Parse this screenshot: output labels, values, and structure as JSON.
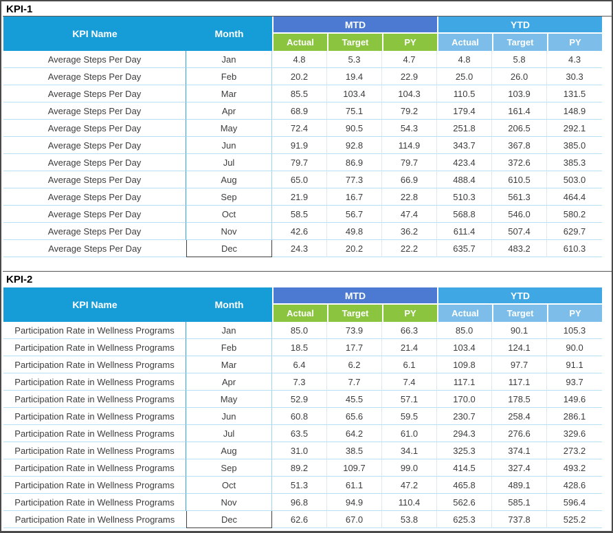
{
  "sheet": {
    "header": {
      "kpi_name": "KPI Name",
      "month": "Month",
      "groups": [
        "MTD",
        "YTD"
      ],
      "sub": [
        "Actual",
        "Target",
        "PY"
      ]
    },
    "colors": {
      "header_teal": "#169DD8",
      "mtd_band_blue": "#4C79D1",
      "ytd_band_blue": "#3FA7E3",
      "mtd_sub_green": "#8BC540",
      "ytd_sub_light_blue": "#7CBEE9",
      "row_border_light_blue": "#B5DFF2",
      "selected_cell_border": "#3F3F3F",
      "outer_border_gray": "#4A4A4A"
    },
    "tables": [
      {
        "title": "KPI-1",
        "kpi_name": "Average Steps Per Day",
        "rows": [
          [
            "Jan",
            "4.8",
            "5.3",
            "4.7",
            "4.8",
            "5.8",
            "4.3"
          ],
          [
            "Feb",
            "20.2",
            "19.4",
            "22.9",
            "25.0",
            "26.0",
            "30.3"
          ],
          [
            "Mar",
            "85.5",
            "103.4",
            "104.3",
            "110.5",
            "103.9",
            "131.5"
          ],
          [
            "Apr",
            "68.9",
            "75.1",
            "79.2",
            "179.4",
            "161.4",
            "148.9"
          ],
          [
            "May",
            "72.4",
            "90.5",
            "54.3",
            "251.8",
            "206.5",
            "292.1"
          ],
          [
            "Jun",
            "91.9",
            "92.8",
            "114.9",
            "343.7",
            "367.8",
            "385.0"
          ],
          [
            "Jul",
            "79.7",
            "86.9",
            "79.7",
            "423.4",
            "372.6",
            "385.3"
          ],
          [
            "Aug",
            "65.0",
            "77.3",
            "66.9",
            "488.4",
            "610.5",
            "503.0"
          ],
          [
            "Sep",
            "21.9",
            "16.7",
            "22.8",
            "510.3",
            "561.3",
            "464.4"
          ],
          [
            "Oct",
            "58.5",
            "56.7",
            "47.4",
            "568.8",
            "546.0",
            "580.2"
          ],
          [
            "Nov",
            "42.6",
            "49.8",
            "36.2",
            "611.4",
            "507.4",
            "629.7"
          ],
          [
            "Dec",
            "24.3",
            "20.2",
            "22.2",
            "635.7",
            "483.2",
            "610.3"
          ]
        ]
      },
      {
        "title": "KPI-2",
        "kpi_name": "Participation Rate in Wellness Programs",
        "rows": [
          [
            "Jan",
            "85.0",
            "73.9",
            "66.3",
            "85.0",
            "90.1",
            "105.3"
          ],
          [
            "Feb",
            "18.5",
            "17.7",
            "21.4",
            "103.4",
            "124.1",
            "90.0"
          ],
          [
            "Mar",
            "6.4",
            "6.2",
            "6.1",
            "109.8",
            "97.7",
            "91.1"
          ],
          [
            "Apr",
            "7.3",
            "7.7",
            "7.4",
            "117.1",
            "117.1",
            "93.7"
          ],
          [
            "May",
            "52.9",
            "45.5",
            "57.1",
            "170.0",
            "178.5",
            "149.6"
          ],
          [
            "Jun",
            "60.8",
            "65.6",
            "59.5",
            "230.7",
            "258.4",
            "286.1"
          ],
          [
            "Jul",
            "63.5",
            "64.2",
            "61.0",
            "294.3",
            "276.6",
            "329.6"
          ],
          [
            "Aug",
            "31.0",
            "38.5",
            "34.1",
            "325.3",
            "374.1",
            "273.2"
          ],
          [
            "Sep",
            "89.2",
            "109.7",
            "99.0",
            "414.5",
            "327.4",
            "493.2"
          ],
          [
            "Oct",
            "51.3",
            "61.1",
            "47.2",
            "465.8",
            "489.1",
            "428.6"
          ],
          [
            "Nov",
            "96.8",
            "94.9",
            "110.4",
            "562.6",
            "585.1",
            "596.4"
          ],
          [
            "Dec",
            "62.6",
            "67.0",
            "53.8",
            "625.3",
            "737.8",
            "525.2"
          ]
        ]
      }
    ]
  }
}
